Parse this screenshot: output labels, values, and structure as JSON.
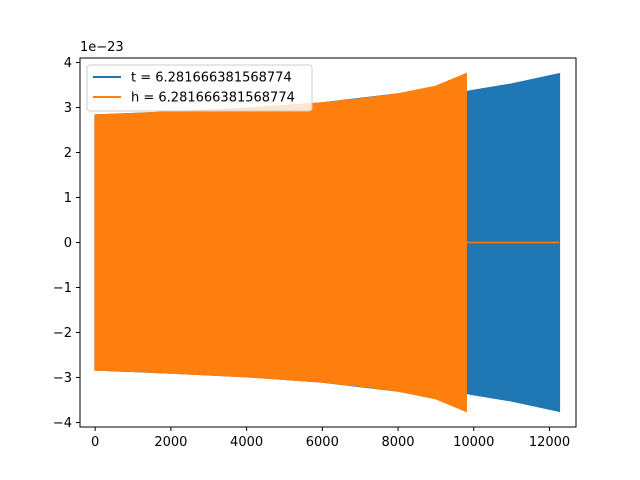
{
  "chart_data": {
    "type": "line",
    "title": "",
    "xlabel": "",
    "ylabel": "",
    "y_offset_label": "1e−23",
    "xlim": [
      -400,
      12700
    ],
    "ylim": [
      -4.1,
      4.1
    ],
    "x_ticks": [
      0,
      2000,
      4000,
      6000,
      8000,
      10000,
      12000
    ],
    "x_tick_labels": [
      "0",
      "2000",
      "4000",
      "6000",
      "8000",
      "10000",
      "12000"
    ],
    "y_ticks": [
      -4,
      -3,
      -2,
      -1,
      0,
      1,
      2,
      3,
      4
    ],
    "y_tick_labels": [
      "−4",
      "−3",
      "−2",
      "−1",
      "0",
      "1",
      "2",
      "3",
      "4"
    ],
    "grid": false,
    "legend_position": "upper-left",
    "series": [
      {
        "name": "t = 6.281666381568774",
        "color": "#1f77b4",
        "style": "dense-oscillation",
        "x": [
          0,
          2000,
          4000,
          6000,
          8000,
          9800,
          10000,
          11000,
          12260
        ],
        "envelope_upper": [
          2.83,
          2.9,
          2.98,
          3.1,
          3.3,
          3.35,
          3.38,
          3.52,
          3.75
        ],
        "envelope_lower": [
          -2.83,
          -2.9,
          -2.98,
          -3.1,
          -3.3,
          -3.35,
          -3.38,
          -3.52,
          -3.75
        ],
        "flat_x_range": [
          -10,
          0
        ],
        "flat_value": 0
      },
      {
        "name": "h = 6.281666381568774",
        "color": "#ff7f0e",
        "style": "dense-oscillation",
        "x": [
          0,
          1000,
          2000,
          3000,
          4000,
          5000,
          6000,
          7000,
          8000,
          9000,
          9800
        ],
        "envelope_upper": [
          2.83,
          2.86,
          2.9,
          2.94,
          2.98,
          3.04,
          3.1,
          3.19,
          3.3,
          3.47,
          3.75
        ],
        "envelope_lower": [
          -2.83,
          -2.86,
          -2.9,
          -2.94,
          -2.98,
          -3.04,
          -3.1,
          -3.19,
          -3.3,
          -3.47,
          -3.75
        ],
        "flat_x_range": [
          9800,
          12260
        ],
        "flat_value": 0
      }
    ]
  }
}
